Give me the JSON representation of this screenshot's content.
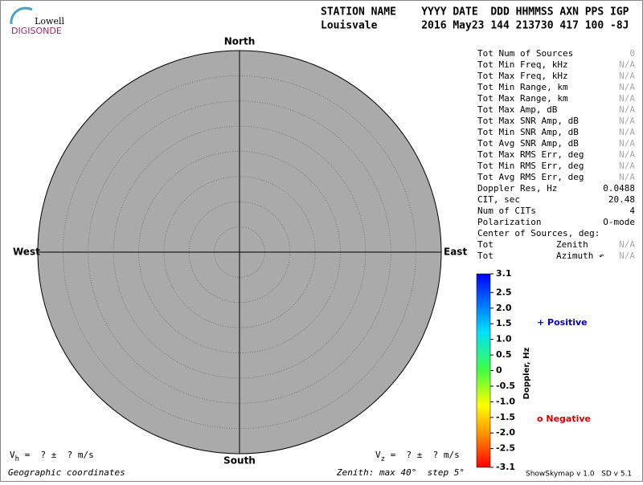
{
  "logo": {
    "top": "Lowell",
    "bottom": "DIGISONDE"
  },
  "header": {
    "labels": "STATION NAME    YYYY DATE  DDD HHMMSS AXN PPS IGP",
    "values": "Louisvale       2016 May23 144 213730 417 100 -8J"
  },
  "compass": {
    "north": "North",
    "south": "South",
    "west": "West",
    "east": "East"
  },
  "stats": [
    {
      "label": "Tot Num of Sources",
      "value": "0",
      "na": true
    },
    {
      "label": "Tot Min Freq, kHz",
      "value": "N/A",
      "na": true
    },
    {
      "label": "Tot Max Freq, kHz",
      "value": "N/A",
      "na": true
    },
    {
      "label": "Tot Min Range, km",
      "value": "N/A",
      "na": true
    },
    {
      "label": "Tot Max Range, km",
      "value": "N/A",
      "na": true
    },
    {
      "label": "Tot Max Amp, dB",
      "value": "N/A",
      "na": true
    },
    {
      "label": "Tot Max SNR Amp, dB",
      "value": "N/A",
      "na": true
    },
    {
      "label": "Tot Min SNR Amp, dB",
      "value": "N/A",
      "na": true
    },
    {
      "label": "Tot Avg SNR Amp, dB",
      "value": "N/A",
      "na": true
    },
    {
      "label": "Tot Max RMS Err, deg",
      "value": "N/A",
      "na": true
    },
    {
      "label": "Tot Min RMS Err, deg",
      "value": "N/A",
      "na": true
    },
    {
      "label": "Tot Avg RMS Err, deg",
      "value": "N/A",
      "na": true
    },
    {
      "label": "Doppler Res, Hz",
      "value": "0.0488",
      "na": false
    },
    {
      "label": "CIT, sec",
      "value": "20.48",
      "na": false
    },
    {
      "label": "Num of CITs",
      "value": "4",
      "na": false
    },
    {
      "label": "Polarization",
      "value": "O-mode",
      "na": false
    }
  ],
  "center": {
    "title": "Center of Sources, deg:",
    "rows": [
      {
        "prefix": "Tot",
        "label": "Zenith",
        "value": "N/A"
      },
      {
        "prefix": "Tot",
        "label": "Azimuth ↶",
        "value": "N/A"
      }
    ]
  },
  "colorbar": {
    "label": "Doppler, Hz",
    "lim": [
      -3.1,
      3.1
    ],
    "ticks": [
      3.1,
      2.5,
      {
        "value": 2,
        "label": "2.0"
      },
      1.5,
      {
        "value": 1,
        "label": "1.0"
      },
      0.5,
      0,
      -0.5,
      {
        "value": -1,
        "label": "-1.0"
      },
      -1.5,
      {
        "value": -2,
        "label": "-2.0"
      },
      -2.5,
      -3.1
    ]
  },
  "legend": {
    "positive": "+ Positive",
    "negative": "o Negative"
  },
  "velocity": {
    "h_sym": "V",
    "h_sub": "h",
    "h_rest": " =  ? ±  ? m/s",
    "z_sym": "V",
    "z_sub": "z",
    "z_rest": " =  ? ±  ? m/s"
  },
  "footer": {
    "coords": "Geographic coordinates",
    "zenith": "Zenith: max 40°  step 5°",
    "version": "ShowSkymap v 1.0   SD v 5.1"
  }
}
